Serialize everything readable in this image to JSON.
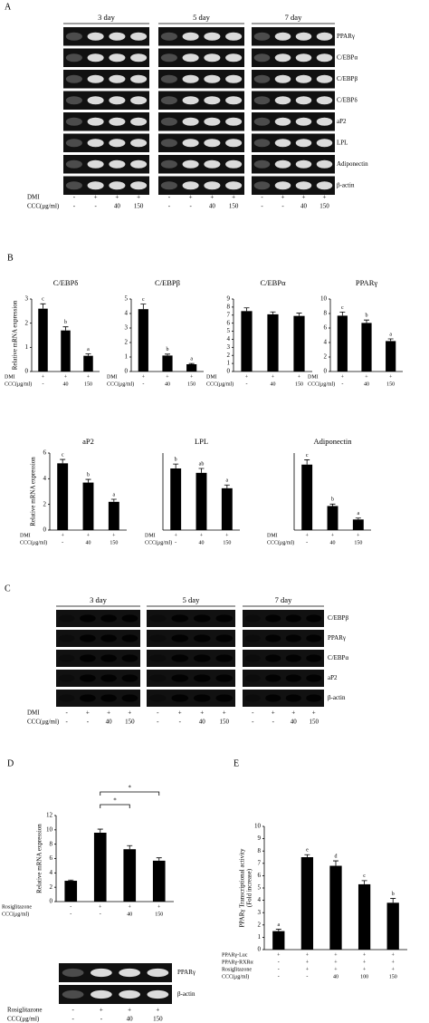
{
  "panel_labels": [
    "A",
    "B",
    "C",
    "D",
    "E"
  ],
  "gel_a": {
    "days": [
      "3 day",
      "5 day",
      "7 day"
    ],
    "genes": [
      "PPARγ",
      "C/EBPα",
      "C/EBPβ",
      "C/EBPδ",
      "aP2",
      "LPL",
      "Adiponectin",
      "β-actin"
    ],
    "conditions": [
      {
        "label": "DMI",
        "values": [
          "-",
          "+",
          "+",
          "+"
        ]
      },
      {
        "label": "CCC(μg/ml)",
        "values": [
          "-",
          "-",
          "40",
          "150"
        ]
      }
    ]
  },
  "gel_c": {
    "days": [
      "3 day",
      "5 day",
      "7 day"
    ],
    "genes": [
      "C/EBPβ",
      "PPARγ",
      "C/EBPα",
      "aP2",
      "β-actin"
    ],
    "conditions": [
      {
        "label": "DMI",
        "values": [
          "-",
          "+",
          "+",
          "+"
        ]
      },
      {
        "label": "CCC(μg/ml)",
        "values": [
          "-",
          "-",
          "40",
          "150"
        ]
      }
    ]
  },
  "gel_d": {
    "genes": [
      "PPARγ",
      "β-actin"
    ],
    "conditions": [
      {
        "label": "Rosiglitazone",
        "values": [
          "-",
          "+",
          "+",
          "+"
        ]
      },
      {
        "label": "CCC(μg/ml)",
        "values": [
          "-",
          "-",
          "40",
          "150"
        ]
      }
    ]
  },
  "chart_data": [
    {
      "type": "bar",
      "title": "C/EBPδ",
      "ylabel": "Relative mRNA expression",
      "values": [
        2.6,
        1.7,
        0.65
      ],
      "errors": [
        0.2,
        0.15,
        0.08
      ],
      "letters": [
        "c",
        "b",
        "a"
      ],
      "ylim": [
        0,
        3
      ],
      "yticks": [
        0,
        1,
        2,
        3
      ],
      "color": "#000000",
      "conditions": [
        {
          "label": "DMI",
          "values": [
            "+",
            "+",
            "+"
          ]
        },
        {
          "label": "CCC(μg/ml)",
          "values": [
            "-",
            "40",
            "150"
          ]
        }
      ]
    },
    {
      "type": "bar",
      "title": "C/EBPβ",
      "values": [
        4.3,
        1.1,
        0.5
      ],
      "errors": [
        0.35,
        0.1,
        0.05
      ],
      "letters": [
        "c",
        "b",
        "a"
      ],
      "ylim": [
        0,
        5
      ],
      "yticks": [
        0,
        1,
        2,
        3,
        4,
        5
      ],
      "color": "#000000",
      "conditions": [
        {
          "label": "DMI",
          "values": [
            "+",
            "+",
            "+"
          ]
        },
        {
          "label": "CCC(μg/ml)",
          "values": [
            "-",
            "40",
            "150"
          ]
        }
      ]
    },
    {
      "type": "bar",
      "title": "C/EBPα",
      "values": [
        7.5,
        7.1,
        6.9
      ],
      "errors": [
        0.4,
        0.3,
        0.35
      ],
      "ylim": [
        0,
        9
      ],
      "yticks": [
        0,
        1,
        2,
        3,
        4,
        5,
        6,
        7,
        8,
        9
      ],
      "color": "#000000",
      "conditions": [
        {
          "label": "DMI",
          "values": [
            "+",
            "+",
            "+"
          ]
        },
        {
          "label": "CCC(μg/ml)",
          "values": [
            "-",
            "40",
            "150"
          ]
        }
      ]
    },
    {
      "type": "bar",
      "title": "PPARγ",
      "values": [
        7.7,
        6.7,
        4.2
      ],
      "errors": [
        0.5,
        0.4,
        0.3
      ],
      "letters": [
        "c",
        "b",
        "a"
      ],
      "ylim": [
        0,
        10
      ],
      "yticks": [
        0,
        2,
        4,
        6,
        8,
        10
      ],
      "color": "#000000",
      "conditions": [
        {
          "label": "DMI",
          "values": [
            "+",
            "+",
            "+"
          ]
        },
        {
          "label": "CCC(μg/ml)",
          "values": [
            "-",
            "40",
            "150"
          ]
        }
      ]
    },
    {
      "type": "bar",
      "title": "aP2",
      "ylabel": "Relative mRNA expression",
      "values": [
        5.2,
        3.7,
        2.2
      ],
      "errors": [
        0.3,
        0.25,
        0.2
      ],
      "letters": [
        "c",
        "b",
        "a"
      ],
      "ylim": [
        0,
        6
      ],
      "yticks": [
        0,
        2,
        4,
        6
      ],
      "color": "#000000",
      "conditions": [
        {
          "label": "DMI",
          "values": [
            "+",
            "+",
            "+"
          ]
        },
        {
          "label": "CCC(μg/ml)",
          "values": [
            "-",
            "40",
            "150"
          ]
        }
      ]
    },
    {
      "type": "bar",
      "title": "LPL",
      "values": [
        5.6,
        5.2,
        3.8
      ],
      "errors": [
        0.4,
        0.4,
        0.3
      ],
      "letters": [
        "b",
        "ab",
        "a"
      ],
      "ylim": [
        0,
        7
      ],
      "color": "#000000",
      "conditions": [
        {
          "label": "DMI",
          "values": [
            "+",
            "+",
            "+"
          ]
        },
        {
          "label": "CCC(μg/ml)",
          "values": [
            "-",
            "40",
            "150"
          ]
        }
      ]
    },
    {
      "type": "bar",
      "title": "Adiponectin",
      "values": [
        6.8,
        2.5,
        1.1
      ],
      "errors": [
        0.5,
        0.2,
        0.15
      ],
      "letters": [
        "c",
        "b",
        "a"
      ],
      "ylim": [
        0,
        8
      ],
      "color": "#000000",
      "conditions": [
        {
          "label": "DMI",
          "values": [
            "+",
            "+",
            "+"
          ]
        },
        {
          "label": "CCC(μg/ml)",
          "values": [
            "-",
            "40",
            "150"
          ]
        }
      ]
    },
    {
      "type": "bar",
      "ylabel": "Relative mRNA expression",
      "values": [
        2.9,
        9.6,
        7.3,
        5.7
      ],
      "errors": [
        0.1,
        0.5,
        0.5,
        0.4
      ],
      "significance": [
        "*",
        "*"
      ],
      "ylim": [
        0,
        12
      ],
      "yticks": [
        0,
        2,
        4,
        6,
        8,
        10,
        12
      ],
      "color": "#000000",
      "conditions": [
        {
          "label": "Rosiglitazone",
          "values": [
            "-",
            "+",
            "+",
            "+"
          ]
        },
        {
          "label": "CCC(μg/ml)",
          "values": [
            "-",
            "-",
            "40",
            "150"
          ]
        }
      ]
    },
    {
      "type": "bar",
      "ylabel": [
        "PPARγ Transcriptional activity",
        "(Fold increase)"
      ],
      "values": [
        1.5,
        7.5,
        6.8,
        5.3,
        3.8
      ],
      "errors": [
        0.15,
        0.2,
        0.4,
        0.3,
        0.35
      ],
      "letters": [
        "a",
        "e",
        "d",
        "c",
        "b"
      ],
      "ylim": [
        0,
        10
      ],
      "yticks": [
        0,
        1,
        2,
        3,
        4,
        5,
        6,
        7,
        8,
        9,
        10
      ],
      "color": "#000000",
      "conditions": [
        {
          "label": "PPARγ-Luc",
          "values": [
            "+",
            "+",
            "+",
            "+",
            "+"
          ]
        },
        {
          "label": "PPARγ-RXRα",
          "values": [
            "-",
            "+",
            "+",
            "+",
            "+"
          ]
        },
        {
          "label": "Rosiglitazone",
          "values": [
            "-",
            "+",
            "+",
            "+",
            "+"
          ]
        },
        {
          "label": "CCC(μg/ml)",
          "values": [
            "-",
            "-",
            "40",
            "100",
            "150"
          ]
        }
      ]
    }
  ]
}
